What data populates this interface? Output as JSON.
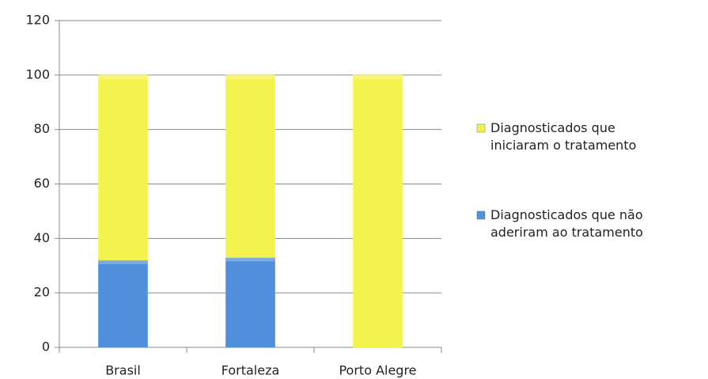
{
  "chart_data": {
    "type": "bar",
    "stacked": true,
    "categories": [
      "Brasil",
      "Fortaleza",
      "Porto Alegre"
    ],
    "series": [
      {
        "name": "Diagnosticados que não aderiram ao tratamento",
        "color": "#4f8fdc",
        "values": [
          32,
          33,
          0
        ]
      },
      {
        "name": "Diagnosticados que iniciaram o tratamento",
        "color": "#f4f24c",
        "values": [
          68,
          67,
          100
        ]
      }
    ],
    "ylim": [
      0,
      120
    ],
    "yticks": [
      0,
      20,
      40,
      60,
      80,
      100,
      120
    ],
    "grid": true,
    "legend": "right"
  }
}
